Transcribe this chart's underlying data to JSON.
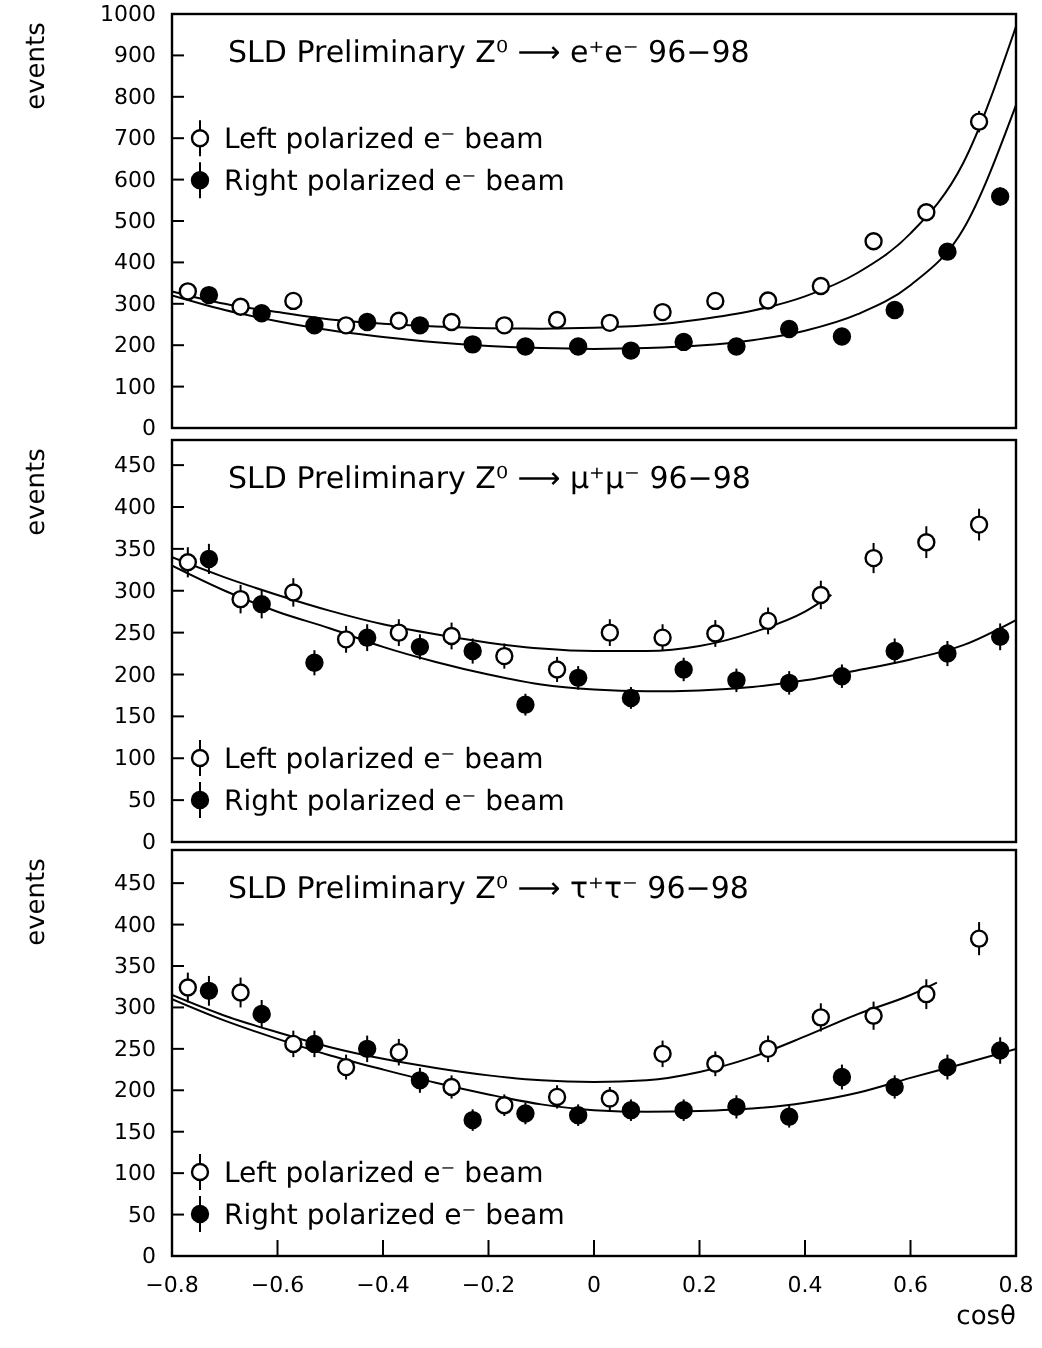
{
  "chart_data": [
    {
      "type": "scatter",
      "title": "SLD Preliminary Z⁰ ⟶ e⁺e⁻ 96−98",
      "ylabel": "events",
      "xlim": [
        -0.8,
        0.8
      ],
      "ylim": [
        0,
        1000
      ],
      "yticks": [
        0,
        100,
        200,
        300,
        400,
        500,
        600,
        700,
        800,
        900,
        1000
      ],
      "tick_labels": "y",
      "legend": "left",
      "series": [
        {
          "name": "Left polarized e⁻ beam",
          "marker": "circle",
          "color": "#ffffff",
          "x": [
            -0.77,
            -0.67,
            -0.57,
            -0.47,
            -0.37,
            -0.27,
            -0.17,
            -0.07,
            0.03,
            0.13,
            0.23,
            0.33,
            0.43,
            0.53,
            0.63,
            0.73
          ],
          "values": [
            330,
            293,
            307,
            248,
            259,
            256,
            248,
            261,
            254,
            280,
            307,
            308,
            343,
            451,
            521,
            740
          ],
          "errors": [
            15,
            15,
            15,
            14,
            14,
            14,
            14,
            14,
            14,
            15,
            15,
            15,
            16,
            19,
            21,
            26
          ]
        },
        {
          "name": "Right polarized e⁻ beam",
          "marker": "circle",
          "color": "#000000",
          "x": [
            -0.73,
            -0.63,
            -0.53,
            -0.43,
            -0.33,
            -0.23,
            -0.13,
            -0.03,
            0.07,
            0.17,
            0.27,
            0.37,
            0.47,
            0.57,
            0.67,
            0.77
          ],
          "values": [
            321,
            277,
            248,
            256,
            248,
            202,
            197,
            197,
            187,
            208,
            197,
            239,
            221,
            285,
            426,
            559
          ],
          "errors": [
            15,
            15,
            14,
            14,
            14,
            13,
            13,
            13,
            13,
            13,
            13,
            14,
            14,
            15,
            19,
            22
          ]
        },
        {
          "type": "line",
          "color": "#000000",
          "x": [
            -0.8,
            -0.7,
            -0.6,
            -0.5,
            -0.4,
            -0.3,
            -0.2,
            -0.1,
            0,
            0.1,
            0.2,
            0.3,
            0.4,
            0.5,
            0.6,
            0.7,
            0.8
          ],
          "values": [
            330,
            300,
            280,
            262,
            252,
            245,
            241,
            240,
            242,
            248,
            262,
            283,
            318,
            375,
            470,
            640,
            970
          ]
        },
        {
          "type": "line",
          "color": "#000000",
          "x": [
            -0.8,
            -0.7,
            -0.6,
            -0.5,
            -0.4,
            -0.3,
            -0.2,
            -0.1,
            0,
            0.1,
            0.2,
            0.3,
            0.4,
            0.5,
            0.6,
            0.7,
            0.8
          ],
          "values": [
            320,
            285,
            258,
            236,
            220,
            207,
            198,
            193,
            191,
            193,
            199,
            212,
            235,
            275,
            345,
            480,
            780
          ]
        }
      ]
    },
    {
      "type": "scatter",
      "title": "SLD Preliminary Z⁰ ⟶ μ⁺μ⁻ 96−98",
      "ylabel": "events",
      "xlim": [
        -0.8,
        0.8
      ],
      "ylim": [
        0,
        480
      ],
      "yticks": [
        0,
        50,
        100,
        150,
        200,
        250,
        300,
        350,
        400,
        450
      ],
      "tick_labels": "y",
      "legend": "bottom left",
      "series": [
        {
          "name": "Left polarized e⁻ beam",
          "marker": "circle",
          "color": "#ffffff",
          "x": [
            -0.77,
            -0.67,
            -0.57,
            -0.47,
            -0.37,
            -0.27,
            -0.17,
            -0.07,
            0.03,
            0.13,
            0.23,
            0.33,
            0.43,
            0.53,
            0.63,
            0.73
          ],
          "values": [
            334,
            290,
            298,
            242,
            250,
            246,
            222,
            206,
            250,
            244,
            249,
            264,
            295,
            339,
            358,
            379
          ],
          "errors": [
            18,
            17,
            17,
            16,
            16,
            16,
            15,
            15,
            16,
            16,
            16,
            16,
            17,
            18,
            19,
            19
          ]
        },
        {
          "name": "Right polarized e⁻ beam",
          "marker": "circle",
          "color": "#000000",
          "x": [
            -0.73,
            -0.63,
            -0.53,
            -0.43,
            -0.33,
            -0.23,
            -0.13,
            -0.03,
            0.07,
            0.17,
            0.27,
            0.37,
            0.47,
            0.57,
            0.67,
            0.77
          ],
          "values": [
            338,
            284,
            214,
            244,
            233,
            228,
            164,
            196,
            172,
            206,
            193,
            190,
            198,
            228,
            225,
            245
          ],
          "errors": [
            18,
            17,
            15,
            16,
            15,
            15,
            13,
            14,
            13,
            14,
            14,
            14,
            14,
            15,
            15,
            16
          ]
        },
        {
          "type": "line",
          "color": "#000000",
          "x": [
            -0.8,
            -0.7,
            -0.6,
            -0.5,
            -0.4,
            -0.3,
            -0.2,
            -0.1,
            0,
            0.1,
            0.2,
            0.3,
            0.4,
            0.45
          ],
          "values": [
            340,
            316,
            295,
            276,
            260,
            248,
            238,
            231,
            228,
            228,
            234,
            250,
            275,
            295
          ]
        },
        {
          "type": "line",
          "color": "#000000",
          "x": [
            -0.8,
            -0.7,
            -0.6,
            -0.5,
            -0.4,
            -0.3,
            -0.2,
            -0.1,
            0,
            0.1,
            0.2,
            0.3,
            0.4,
            0.5,
            0.6,
            0.7,
            0.8
          ],
          "values": [
            330,
            300,
            275,
            255,
            233,
            215,
            200,
            188,
            182,
            180,
            181,
            185,
            193,
            205,
            218,
            235,
            265
          ]
        }
      ]
    },
    {
      "type": "scatter",
      "title": "SLD Preliminary Z⁰ ⟶ τ⁺τ⁻ 96−98",
      "xlabel": "cosθ",
      "ylabel": "events",
      "xlim": [
        -0.8,
        0.8
      ],
      "xticks": [
        {
          "value": -0.8,
          "label": "−0.8"
        },
        {
          "value": -0.6,
          "label": "−0.6"
        },
        {
          "value": -0.4,
          "label": "−0.4"
        },
        {
          "value": -0.2,
          "label": "−0.2"
        },
        0,
        0.2,
        0.4,
        0.6,
        0.8
      ],
      "ylim": [
        0,
        490
      ],
      "yticks": [
        0,
        50,
        100,
        150,
        200,
        250,
        300,
        350,
        400,
        450
      ],
      "legend": "bottom left",
      "series": [
        {
          "name": "Left polarized e⁻ beam",
          "marker": "circle",
          "color": "#ffffff",
          "x": [
            -0.77,
            -0.67,
            -0.57,
            -0.47,
            -0.37,
            -0.27,
            -0.17,
            -0.07,
            0.03,
            0.13,
            0.23,
            0.33,
            0.43,
            0.53,
            0.63,
            0.73
          ],
          "values": [
            324,
            318,
            256,
            228,
            246,
            204,
            182,
            192,
            190,
            244,
            232,
            250,
            288,
            290,
            316,
            383
          ],
          "errors": [
            18,
            18,
            16,
            15,
            16,
            14,
            13,
            14,
            14,
            16,
            15,
            16,
            17,
            17,
            18,
            20
          ]
        },
        {
          "name": "Right polarized e⁻ beam",
          "marker": "circle",
          "color": "#000000",
          "x": [
            -0.73,
            -0.63,
            -0.53,
            -0.43,
            -0.33,
            -0.23,
            -0.13,
            -0.03,
            0.07,
            0.17,
            0.27,
            0.37,
            0.47,
            0.57,
            0.67,
            0.77
          ],
          "values": [
            320,
            292,
            256,
            250,
            212,
            164,
            172,
            170,
            176,
            176,
            180,
            168,
            216,
            204,
            228,
            248
          ],
          "errors": [
            18,
            17,
            16,
            16,
            15,
            13,
            13,
            13,
            13,
            13,
            14,
            13,
            15,
            14,
            15,
            16
          ]
        },
        {
          "type": "line",
          "color": "#000000",
          "x": [
            -0.8,
            -0.7,
            -0.6,
            -0.5,
            -0.4,
            -0.3,
            -0.2,
            -0.1,
            0,
            0.1,
            0.2,
            0.3,
            0.4,
            0.5,
            0.6,
            0.65
          ],
          "values": [
            315,
            290,
            270,
            252,
            238,
            227,
            218,
            212,
            210,
            212,
            222,
            240,
            265,
            292,
            315,
            330
          ]
        },
        {
          "type": "line",
          "color": "#000000",
          "x": [
            -0.8,
            -0.7,
            -0.6,
            -0.5,
            -0.4,
            -0.3,
            -0.2,
            -0.1,
            0,
            0.1,
            0.2,
            0.3,
            0.4,
            0.5,
            0.6,
            0.7,
            0.8
          ],
          "values": [
            310,
            284,
            262,
            242,
            225,
            209,
            195,
            183,
            176,
            174,
            175,
            178,
            185,
            197,
            215,
            232,
            250
          ]
        }
      ]
    }
  ]
}
